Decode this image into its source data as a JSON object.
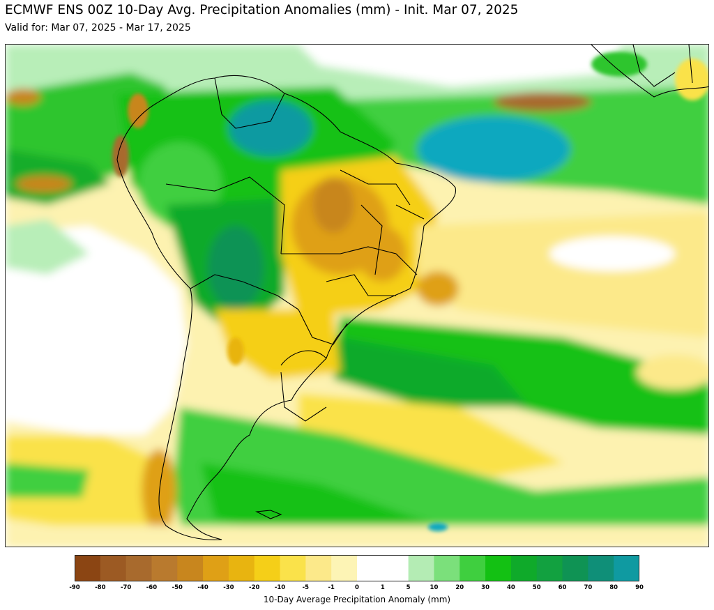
{
  "header": {
    "title": "ECMWF ENS 00Z 10-Day Avg. Precipitation Anomalies (mm) - Init. Mar 07, 2025",
    "subtitle": "Valid for: Mar 07, 2025 - Mar 17, 2025"
  },
  "map": {
    "region": "South America",
    "variable": "10-day average precipitation anomaly",
    "units": "mm"
  },
  "colorbar": {
    "label": "10-Day Average Precipitation Anomaly (mm)",
    "ticks": [
      "-90",
      "-80",
      "-70",
      "-60",
      "-50",
      "-40",
      "-30",
      "-20",
      "-10",
      "-5",
      "-1",
      "0",
      "1",
      "5",
      "10",
      "20",
      "30",
      "40",
      "50",
      "60",
      "70",
      "80",
      "90"
    ],
    "colors": [
      "#8b4513",
      "#9c5a23",
      "#a86a2d",
      "#b97a2e",
      "#c8861e",
      "#dfa016",
      "#e8b410",
      "#f5cf18",
      "#fae24a",
      "#fce98a",
      "#fdf4b5",
      "#ffffff",
      "#ffffff",
      "#b4ecb4",
      "#7be07b",
      "#3fcf3f",
      "#13c113",
      "#0faa2a",
      "#12a140",
      "#0f9354",
      "#0f8f78",
      "#0f9aa1",
      "#0aa8bf"
    ]
  }
}
